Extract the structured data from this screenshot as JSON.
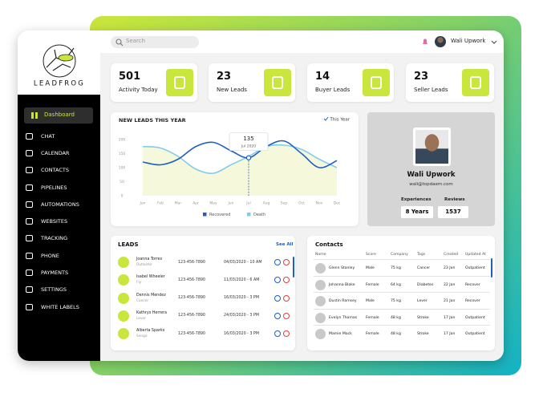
{
  "brand": {
    "name": "LEADFROG"
  },
  "search": {
    "placeholder": "Search"
  },
  "user": {
    "name": "Wali Upwork"
  },
  "sidebar": {
    "active": "Dashboard",
    "items": [
      "CHAT",
      "CALENDAR",
      "CONTACTS",
      "PIPELINES",
      "AUTOMATIONS",
      "WEBSITES",
      "TRACKING",
      "PHONE",
      "PAYMENTS",
      "SETTINGS",
      "WHITE LABELS"
    ]
  },
  "stats": [
    {
      "value": 501,
      "label": "Activity Today"
    },
    {
      "value": 23,
      "label": "New Leads"
    },
    {
      "value": 14,
      "label": "Buyer Leads"
    },
    {
      "value": 23,
      "label": "Seller Leads"
    }
  ],
  "chart_data": {
    "type": "line",
    "title": "NEW LEADS THIS YEAR",
    "filter": "This Year",
    "categories": [
      "Jan",
      "Feb",
      "Mar",
      "Apr",
      "May",
      "Jun",
      "Jul",
      "Aug",
      "Sep",
      "Oct",
      "Nov",
      "Dec"
    ],
    "ylim": [
      0,
      200
    ],
    "yticks": [
      0,
      50,
      100,
      150,
      200
    ],
    "series": [
      {
        "name": "Recovered",
        "color": "#1f5fc4",
        "values": [
          120,
          110,
          130,
          175,
          190,
          160,
          135,
          175,
          195,
          150,
          100,
          125
        ]
      },
      {
        "name": "Death",
        "color": "#7fcdec",
        "values": [
          175,
          170,
          140,
          95,
          80,
          110,
          140,
          175,
          180,
          165,
          130,
          100
        ]
      }
    ],
    "area_color": "#f6f8dc",
    "tooltip": {
      "value": 135,
      "label": "Jul 2020"
    }
  },
  "profile": {
    "name": "Wali Upwork",
    "email": "wali@topdaem.com",
    "experiences_label": "Experiences",
    "experiences": "8 Years",
    "reviews_label": "Reviews",
    "reviews": 1537
  },
  "leads": {
    "title": "LEADS",
    "link": "See All",
    "rows": [
      {
        "name": "Joanna Torres",
        "tag": "Outlaster",
        "phone": "123-456-7890",
        "date": "04/03/2020 - 10 AM"
      },
      {
        "name": "Isabel Wheeler",
        "tag": "Fly",
        "phone": "123-456-7890",
        "date": "11/03/2020 - 6 AM"
      },
      {
        "name": "Dennis Mendez",
        "tag": "Cancer",
        "phone": "123-456-7890",
        "date": "16/03/2020 - 3 PM"
      },
      {
        "name": "Kathrys Herrera",
        "tag": "Lever",
        "phone": "123-456-7890",
        "date": "24/03/2020 - 3 PM"
      },
      {
        "name": "Alberta Sparks",
        "tag": "Senga",
        "phone": "123-456-7890",
        "date": "16/03/2020 - 3 PM"
      }
    ]
  },
  "contacts": {
    "title": "Contacts",
    "columns": [
      "Name",
      "Score",
      "Company",
      "Tags",
      "Created",
      "Updated At"
    ],
    "rows": [
      [
        "Glenn Stanley",
        "Male",
        "75 kg",
        "Cancer",
        "23 Jan",
        "Outpatient"
      ],
      [
        "Johanna Blake",
        "Female",
        "64 kg",
        "Diabetes",
        "22 Jan",
        "Recover"
      ],
      [
        "Dustin Ramsey",
        "Male",
        "75 kg",
        "Lever",
        "21 Jan",
        "Recover"
      ],
      [
        "Evelyn Thomas",
        "Female",
        "48 kg",
        "Stroke",
        "17 Jan",
        "Outpatient"
      ],
      [
        "Mamie Mack",
        "Female",
        "48 kg",
        "Stroke",
        "17 Jan",
        "Outpatient"
      ]
    ]
  }
}
